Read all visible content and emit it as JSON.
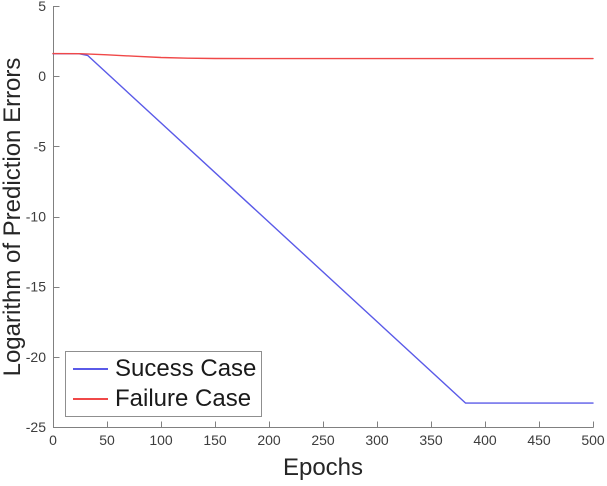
{
  "figure": {
    "background": "#ffffff"
  },
  "axes": {
    "line_color": "#808080",
    "tick_label_color": "#3d3d3d",
    "axis_label_color": "#262626"
  },
  "legend": {
    "items": [
      {
        "label": "Sucess Case",
        "color": "#5a5ae8"
      },
      {
        "label": "Failure Case",
        "color": "#f04848"
      }
    ]
  },
  "chart_data": {
    "type": "line",
    "title": "",
    "xlabel": "Epochs",
    "ylabel": "Logarithm of Prediction Errors",
    "xlim": [
      0,
      500
    ],
    "ylim": [
      -25,
      5
    ],
    "x_ticks": [
      0,
      50,
      100,
      150,
      200,
      250,
      300,
      350,
      400,
      450,
      500
    ],
    "y_ticks": [
      5,
      0,
      -5,
      -10,
      -15,
      -20,
      -25
    ],
    "grid": false,
    "legend_position": "lower-left",
    "series": [
      {
        "name": "Sucess Case",
        "color": "#5a5ae8",
        "points": [
          [
            0,
            1.6
          ],
          [
            24,
            1.6
          ],
          [
            32,
            1.48
          ],
          [
            382,
            -23.3
          ],
          [
            500,
            -23.3
          ]
        ]
      },
      {
        "name": "Failure Case",
        "color": "#f04848",
        "points": [
          [
            0,
            1.61
          ],
          [
            25,
            1.6
          ],
          [
            50,
            1.52
          ],
          [
            75,
            1.42
          ],
          [
            100,
            1.33
          ],
          [
            125,
            1.28
          ],
          [
            150,
            1.26
          ],
          [
            200,
            1.25
          ],
          [
            500,
            1.25
          ]
        ]
      }
    ]
  }
}
